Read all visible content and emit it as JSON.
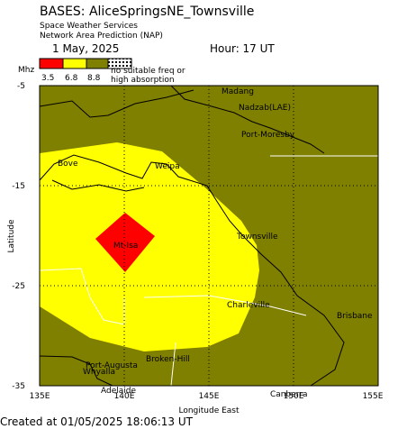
{
  "header": {
    "title": "BASES: AliceSpringsNE_Townsville",
    "subtitle_1": "Space Weather Services",
    "subtitle_2": "Network Area Prediction (NAP)",
    "date": "1 May, 2025",
    "hour": "Hour: 17 UT"
  },
  "legend": {
    "unit": "Mhz",
    "labels": [
      "3.5",
      "6.8",
      "8.8"
    ],
    "note_1": "no suitable freq or",
    "note_2": "high absorption"
  },
  "map": {
    "x_axis_label": "Longitude East",
    "y_axis_label": "Latitude",
    "x_tick_labels": [
      "135E",
      "140E",
      "145E",
      "150E",
      "155E"
    ],
    "y_tick_labels": [
      "-5",
      "-15",
      "-25",
      "-35"
    ],
    "places": [
      "Madang",
      "Nadzab(LAE)",
      "Port-Moresby",
      "Bove",
      "Weipa",
      "Mt-Isa",
      "Townsville",
      "Charleville",
      "Brisbane",
      "Port-Augusta",
      "Whyalla",
      "Broken-Hill",
      "Adelaide",
      "Canberra"
    ]
  },
  "footer": "Created at 01/05/2025 18:06:13 UT"
}
